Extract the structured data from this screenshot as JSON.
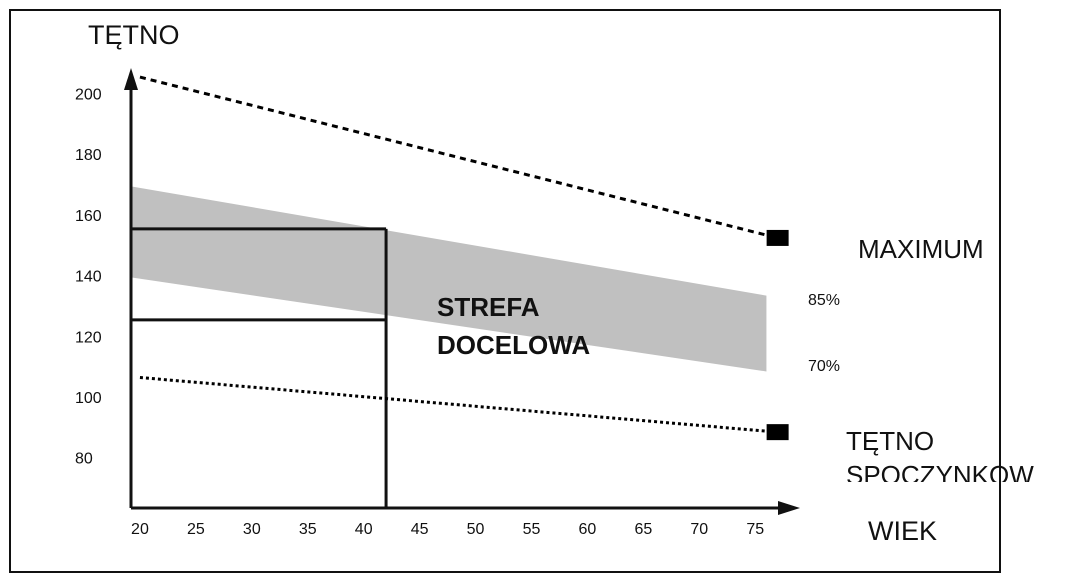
{
  "chart_data": {
    "type": "line",
    "xlabel": "WIEK",
    "ylabel": "TĘTNO",
    "xlim": [
      19.2,
      79
    ],
    "ylim": [
      64,
      209
    ],
    "xticks": [
      20,
      25,
      30,
      35,
      40,
      45,
      50,
      55,
      60,
      65,
      70,
      75
    ],
    "yticks": [
      80,
      100,
      120,
      140,
      160,
      180,
      200
    ],
    "series": [
      {
        "name": "MAXIMUM",
        "color": "#000000",
        "style": "dashed",
        "x": [
          20,
          77
        ],
        "values": [
          206,
          153
        ]
      },
      {
        "name": "TĘTNO SPOCZYNKOW",
        "color": "#000000",
        "style": "dotted",
        "x": [
          20,
          77
        ],
        "values": [
          107,
          89
        ]
      }
    ],
    "band": {
      "label": "STREFA DOCELOWA",
      "color": "#c0c0c0",
      "x": [
        19.2,
        76
      ],
      "upper": [
        170,
        134
      ],
      "lower": [
        140,
        109
      ],
      "upper_label": "85%",
      "lower_label": "70%"
    },
    "example": {
      "x": 42,
      "values": [
        156,
        126
      ]
    }
  }
}
